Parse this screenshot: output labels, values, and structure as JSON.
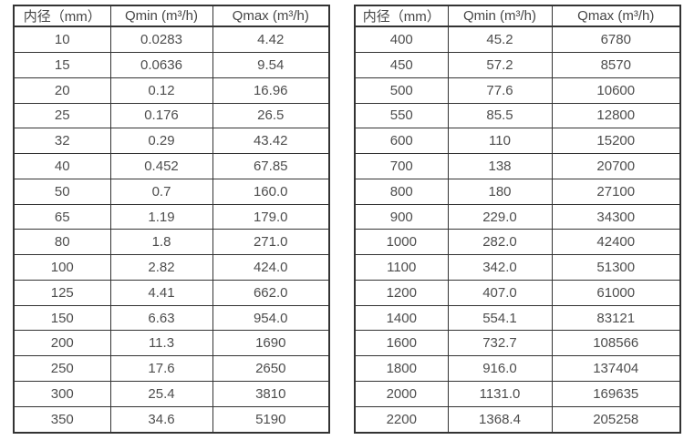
{
  "page": {
    "background_color": "#ffffff",
    "text_color": "#4d4d4d",
    "border_color": "#333333"
  },
  "tables": [
    {
      "name": "flow-range-small-diameters",
      "headers": [
        "内径（mm）",
        "Qmin (m³/h)",
        "Qmax (m³/h)"
      ],
      "rows": [
        [
          "10",
          "0.0283",
          "4.42"
        ],
        [
          "15",
          "0.0636",
          "9.54"
        ],
        [
          "20",
          "0.12",
          "16.96"
        ],
        [
          "25",
          "0.176",
          "26.5"
        ],
        [
          "32",
          "0.29",
          "43.42"
        ],
        [
          "40",
          "0.452",
          "67.85"
        ],
        [
          "50",
          "0.7",
          "160.0"
        ],
        [
          "65",
          "1.19",
          "179.0"
        ],
        [
          "80",
          "1.8",
          "271.0"
        ],
        [
          "100",
          "2.82",
          "424.0"
        ],
        [
          "125",
          "4.41",
          "662.0"
        ],
        [
          "150",
          "6.63",
          "954.0"
        ],
        [
          "200",
          "11.3",
          "1690"
        ],
        [
          "250",
          "17.6",
          "2650"
        ],
        [
          "300",
          "25.4",
          "3810"
        ],
        [
          "350",
          "34.6",
          "5190"
        ]
      ]
    },
    {
      "name": "flow-range-large-diameters",
      "headers": [
        "内径（mm）",
        "Qmin (m³/h)",
        "Qmax (m³/h)"
      ],
      "rows": [
        [
          "400",
          "45.2",
          "6780"
        ],
        [
          "450",
          "57.2",
          "8570"
        ],
        [
          "500",
          "77.6",
          "10600"
        ],
        [
          "550",
          "85.5",
          "12800"
        ],
        [
          "600",
          "110",
          "15200"
        ],
        [
          "700",
          "138",
          "20700"
        ],
        [
          "800",
          "180",
          "27100"
        ],
        [
          "900",
          "229.0",
          "34300"
        ],
        [
          "1000",
          "282.0",
          "42400"
        ],
        [
          "1100",
          "342.0",
          "51300"
        ],
        [
          "1200",
          "407.0",
          "61000"
        ],
        [
          "1400",
          "554.1",
          "83121"
        ],
        [
          "1600",
          "732.7",
          "108566"
        ],
        [
          "1800",
          "916.0",
          "137404"
        ],
        [
          "2000",
          "1131.0",
          "169635"
        ],
        [
          "2200",
          "1368.4",
          "205258"
        ]
      ]
    }
  ]
}
